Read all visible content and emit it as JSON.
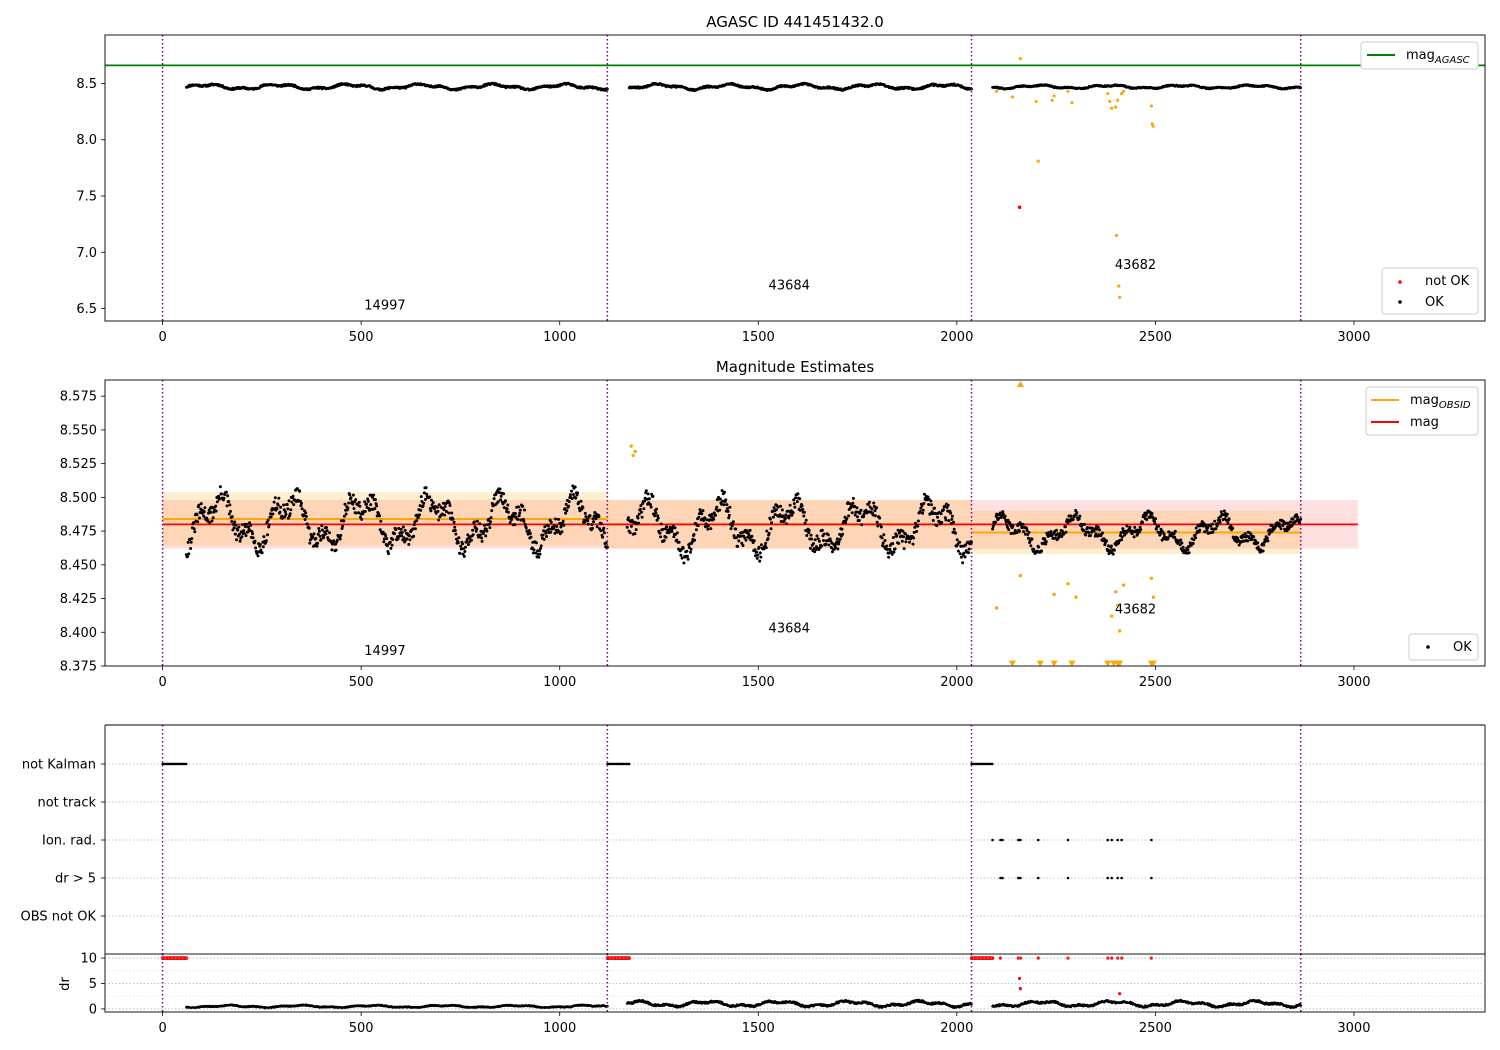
{
  "chart_data": [
    {
      "type": "scatter",
      "title": "AGASC ID 441451432.0",
      "xlabel": "",
      "ylabel": "",
      "xlim": [
        -145,
        3330
      ],
      "ylim": [
        6.39,
        8.93
      ],
      "xticks": [
        0,
        500,
        1000,
        1500,
        2000,
        2500,
        3000
      ],
      "yticks": [
        6.5,
        7.0,
        7.5,
        8.0,
        8.5
      ],
      "ytick_labels": [
        "6.5",
        "7.0",
        "7.5",
        "8.0",
        "8.5"
      ],
      "grid": false,
      "legend": {
        "upper_position": "top-right",
        "lower_position": "bottom-right"
      },
      "obsid_boundaries": [
        0,
        1120,
        2037,
        2866
      ],
      "obsid_labels": [
        {
          "text": "14997",
          "x": 560,
          "y": 6.49
        },
        {
          "text": "43684",
          "x": 1578,
          "y": 6.67
        },
        {
          "text": "43682",
          "x": 2450,
          "y": 6.85
        }
      ],
      "mag_agasc": 8.66,
      "series": [
        {
          "name": "mag_AGASC",
          "color": "#008000",
          "kind": "hline",
          "value": 8.66
        },
        {
          "name": "not OK",
          "color": "#ff0000",
          "kind": "points",
          "points": [
            [
              2158,
              7.4
            ]
          ]
        },
        {
          "name": "OK",
          "color": "#000000",
          "kind": "trace",
          "segments": [
            {
              "x_start": 60,
              "x_end": 1120,
              "center": 8.47,
              "amplitude": 0.03
            },
            {
              "x_start": 1175,
              "x_end": 2037,
              "center": 8.47,
              "amplitude": 0.03
            },
            {
              "x_start": 2090,
              "x_end": 2866,
              "center": 8.47,
              "amplitude": 0.02
            }
          ]
        },
        {
          "name": "",
          "color": "#ffa500",
          "kind": "points",
          "points": [
            [
              2160,
              8.72
            ],
            [
              2100,
              8.43
            ],
            [
              2140,
              8.38
            ],
            [
              2200,
              8.34
            ],
            [
              2205,
              7.81
            ],
            [
              2240,
              8.35
            ],
            [
              2245,
              8.39
            ],
            [
              2280,
              8.43
            ],
            [
              2290,
              8.33
            ],
            [
              2380,
              8.41
            ],
            [
              2385,
              8.34
            ],
            [
              2390,
              8.28
            ],
            [
              2400,
              8.29
            ],
            [
              2402,
              7.15
            ],
            [
              2405,
              8.35
            ],
            [
              2408,
              6.7
            ],
            [
              2410,
              6.6
            ],
            [
              2415,
              8.41
            ],
            [
              2420,
              8.43
            ],
            [
              2490,
              8.3
            ],
            [
              2492,
              8.14
            ],
            [
              2494,
              8.12
            ]
          ]
        }
      ]
    },
    {
      "type": "scatter",
      "title": "Magnitude Estimates",
      "xlabel": "",
      "ylabel": "",
      "xlim": [
        -145,
        3330
      ],
      "ylim": [
        8.375,
        8.587
      ],
      "xticks": [
        0,
        500,
        1000,
        1500,
        2000,
        2500,
        3000
      ],
      "yticks": [
        8.375,
        8.4,
        8.425,
        8.45,
        8.475,
        8.5,
        8.525,
        8.55,
        8.575
      ],
      "ytick_labels": [
        "8.375",
        "8.400",
        "8.425",
        "8.450",
        "8.475",
        "8.500",
        "8.525",
        "8.550",
        "8.575"
      ],
      "grid": false,
      "legend": {
        "upper_position": "top-right",
        "lower_position": "bottom-right"
      },
      "obsid_boundaries": [
        0,
        1120,
        2037,
        2866
      ],
      "obsid_labels": [
        {
          "text": "14997",
          "x": 560,
          "y": 8.383
        },
        {
          "text": "43684",
          "x": 1578,
          "y": 8.4
        },
        {
          "text": "43682",
          "x": 2450,
          "y": 8.414
        }
      ],
      "mag": 8.48,
      "mag_band": [
        8.462,
        8.498
      ],
      "mag_band_x": [
        0,
        3010
      ],
      "obsid_mags": [
        {
          "x_start": 0,
          "x_end": 1120,
          "mag": 8.484,
          "band": [
            8.464,
            8.504
          ]
        },
        {
          "x_start": 1120,
          "x_end": 2037,
          "mag": 8.48,
          "band": [
            8.462,
            8.498
          ]
        },
        {
          "x_start": 2037,
          "x_end": 2866,
          "mag": 8.474,
          "band": [
            8.458,
            8.49
          ]
        }
      ],
      "series": [
        {
          "name": "mag_OBSID",
          "color": "#ffa500",
          "kind": "steps"
        },
        {
          "name": "mag",
          "color": "#ff0000",
          "kind": "hline",
          "value": 8.48
        },
        {
          "name": "OK",
          "color": "#000000",
          "kind": "trace",
          "segments": [
            {
              "x_start": 60,
              "x_end": 1120,
              "center": 8.482,
              "amplitude": 0.025
            },
            {
              "x_start": 1170,
              "x_end": 2037,
              "center": 8.478,
              "amplitude": 0.025
            },
            {
              "x_start": 2090,
              "x_end": 2866,
              "center": 8.474,
              "amplitude": 0.015
            }
          ]
        },
        {
          "name": "",
          "color": "#ffa500",
          "kind": "points",
          "points": [
            [
              1180,
              8.538
            ],
            [
              1185,
              8.531
            ],
            [
              1190,
              8.534
            ],
            [
              2100,
              8.418
            ],
            [
              2160,
              8.442
            ],
            [
              2245,
              8.428
            ],
            [
              2280,
              8.436
            ],
            [
              2300,
              8.426
            ],
            [
              2390,
              8.412
            ],
            [
              2400,
              8.43
            ],
            [
              2405,
              8.42
            ],
            [
              2410,
              8.401
            ],
            [
              2420,
              8.435
            ],
            [
              2490,
              8.44
            ],
            [
              2495,
              8.426
            ]
          ]
        },
        {
          "name": "",
          "color": "#ffa500",
          "kind": "markers_up",
          "points": [
            [
              2160,
              8.584
            ]
          ]
        },
        {
          "name": "",
          "color": "#ffa500",
          "kind": "markers_down",
          "points": [
            [
              2140,
              8.376
            ],
            [
              2210,
              8.376
            ],
            [
              2245,
              8.376
            ],
            [
              2290,
              8.376
            ],
            [
              2380,
              8.376
            ],
            [
              2395,
              8.376
            ],
            [
              2405,
              8.376
            ],
            [
              2410,
              8.376
            ],
            [
              2490,
              8.376
            ],
            [
              2495,
              8.376
            ]
          ]
        }
      ]
    },
    {
      "type": "scatter",
      "title": "",
      "xlabel": "",
      "ylabel": "",
      "xlim": [
        -145,
        3330
      ],
      "grid": true,
      "obsid_boundaries": [
        0,
        1120,
        2037,
        2866
      ],
      "flag_rows": [
        "not Kalman",
        "not track",
        "Ion. rad.",
        "dr > 5",
        "OBS not OK"
      ],
      "flag_segments": [
        {
          "row": "not Kalman",
          "x_start": 0,
          "x_end": 60
        },
        {
          "row": "not Kalman",
          "x_start": 1120,
          "x_end": 1175
        },
        {
          "row": "not Kalman",
          "x_start": 2037,
          "x_end": 2090
        }
      ],
      "flag_points": [
        {
          "row": "Ion. rad.",
          "x": [
            2090,
            2110,
            2115,
            2155,
            2160,
            2205,
            2280,
            2380,
            2390,
            2405,
            2415,
            2490
          ]
        },
        {
          "row": "dr > 5",
          "x": [
            2110,
            2115,
            2155,
            2160,
            2205,
            2280,
            2380,
            2390,
            2405,
            2415,
            2490
          ]
        }
      ]
    },
    {
      "type": "scatter",
      "title": "",
      "xlabel": "",
      "ylabel": "dr",
      "xlim": [
        -145,
        3330
      ],
      "ylim": [
        -0.6,
        10.8
      ],
      "xticks": [
        0,
        500,
        1000,
        1500,
        2000,
        2500,
        3000
      ],
      "yticks": [
        0,
        5,
        10
      ],
      "ytick_labels": [
        "0",
        "5",
        "10"
      ],
      "grid": true,
      "obsid_boundaries": [
        0,
        1120,
        2037,
        2866
      ],
      "series": [
        {
          "name": "",
          "color": "#ff0000",
          "kind": "segments_at",
          "value": 10,
          "segments": [
            [
              0,
              60
            ],
            [
              1120,
              1175
            ],
            [
              2037,
              2090
            ]
          ],
          "points": [
            [
              2110,
              10
            ],
            [
              2155,
              10
            ],
            [
              2160,
              10
            ],
            [
              2205,
              10
            ],
            [
              2280,
              10
            ],
            [
              2380,
              10
            ],
            [
              2390,
              10
            ],
            [
              2405,
              10
            ],
            [
              2415,
              10
            ],
            [
              2490,
              10
            ],
            [
              2158,
              6
            ],
            [
              2160,
              4
            ],
            [
              2410,
              3
            ]
          ]
        },
        {
          "name": "",
          "color": "#000000",
          "kind": "trace",
          "segments": [
            {
              "x_start": 60,
              "x_end": 1120,
              "center": 0.5,
              "amplitude": 0.3
            },
            {
              "x_start": 1170,
              "x_end": 2037,
              "center": 1.0,
              "amplitude": 0.7
            },
            {
              "x_start": 2090,
              "x_end": 2866,
              "center": 1.0,
              "amplitude": 0.7
            }
          ]
        }
      ]
    }
  ]
}
